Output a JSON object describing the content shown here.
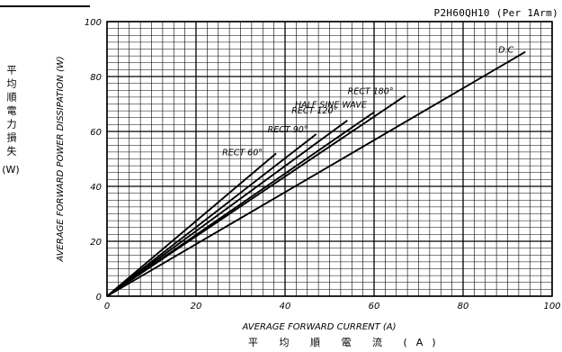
{
  "header": {
    "model": "P2H60QH10  (Per 1Arm)"
  },
  "jp_labels": {
    "y": "平均順電力損失",
    "y_unit": "(W)",
    "x": "平 均 順 電 流  (A)"
  },
  "chart_data": {
    "type": "line",
    "title": "",
    "xlabel": "AVERAGE FORWARD CURRENT (A)",
    "ylabel": "AVERAGE FORWARD POWER DISSIPATION (W)",
    "xlim": [
      0,
      100
    ],
    "ylim": [
      0,
      100
    ],
    "x_ticks": [
      0,
      20,
      40,
      60,
      80,
      100
    ],
    "y_ticks": [
      0,
      20,
      40,
      60,
      80,
      100
    ],
    "x_tick_labels": [
      "0",
      "20",
      "40",
      "60",
      "80",
      "100"
    ],
    "y_tick_labels": [
      "0",
      "20",
      "40",
      "60",
      "80",
      "100"
    ],
    "grid": true,
    "series": [
      {
        "name": "RECT 60°",
        "x": [
          0,
          38
        ],
        "y": [
          0,
          52
        ]
      },
      {
        "name": "RECT 90°",
        "x": [
          0,
          47
        ],
        "y": [
          0,
          59
        ]
      },
      {
        "name": "RECT 120°",
        "x": [
          0,
          54
        ],
        "y": [
          0,
          64
        ]
      },
      {
        "name": "HALF SINE WAVE",
        "x": [
          0,
          60
        ],
        "y": [
          0,
          67
        ]
      },
      {
        "name": "RECT 180°",
        "x": [
          0,
          67
        ],
        "y": [
          0,
          73
        ]
      },
      {
        "name": "D.C",
        "x": [
          0,
          94
        ],
        "y": [
          0,
          89
        ]
      }
    ]
  }
}
